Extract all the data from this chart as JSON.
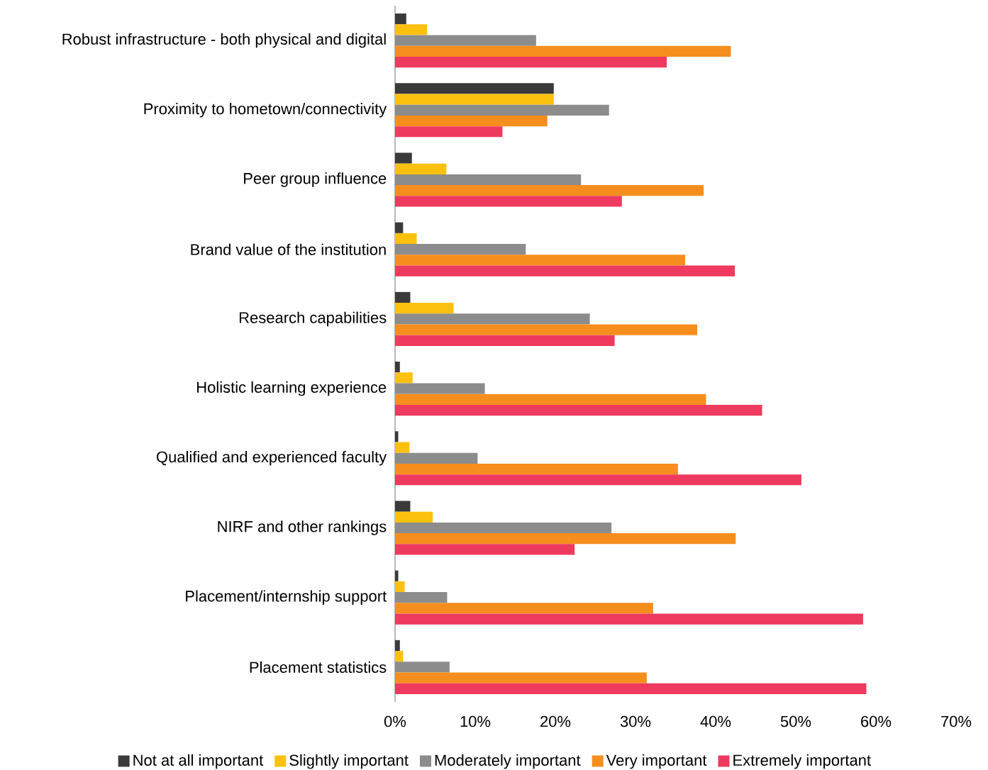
{
  "chart_data": {
    "type": "bar",
    "orientation": "horizontal",
    "categories": [
      "Robust infrastructure - both physical and digital",
      "Proximity to hometown/connectivity",
      "Peer group influence",
      "Brand value of the institution",
      "Research capabilities",
      "Holistic learning experience",
      "Qualified and experienced faculty",
      "NIRF and other rankings",
      "Placement/internship support",
      "Placement statistics"
    ],
    "series": [
      {
        "name": "Not at all important",
        "color": "#3a3a3a",
        "values": [
          1.4,
          19.8,
          2.1,
          1.0,
          1.9,
          0.6,
          0.4,
          1.9,
          0.4,
          0.6
        ]
      },
      {
        "name": "Slightly important",
        "color": "#fcc10f",
        "values": [
          4.0,
          19.8,
          6.4,
          2.7,
          7.3,
          2.2,
          1.8,
          4.7,
          1.2,
          1.0
        ]
      },
      {
        "name": "Moderately important",
        "color": "#8c8c8c",
        "values": [
          17.6,
          26.7,
          23.2,
          16.3,
          24.3,
          11.2,
          10.3,
          27.0,
          6.5,
          6.8
        ]
      },
      {
        "name": "Very important",
        "color": "#f68e1e",
        "values": [
          41.9,
          19.0,
          38.5,
          36.2,
          37.7,
          38.8,
          35.3,
          42.5,
          32.2,
          31.4
        ]
      },
      {
        "name": "Extremely important",
        "color": "#ee3a5e",
        "values": [
          33.9,
          13.4,
          28.3,
          42.4,
          27.4,
          45.8,
          50.7,
          22.4,
          58.4,
          58.8
        ]
      }
    ],
    "xlim": [
      0,
      70
    ],
    "xticks": [
      {
        "value": 0,
        "label": "0%"
      },
      {
        "value": 10,
        "label": "10%"
      },
      {
        "value": 20,
        "label": "20%"
      },
      {
        "value": 30,
        "label": "30%"
      },
      {
        "value": 40,
        "label": "40%"
      },
      {
        "value": 50,
        "label": "50%"
      },
      {
        "value": 60,
        "label": "60%"
      },
      {
        "value": 70,
        "label": "70%"
      }
    ],
    "legend": "bottom"
  }
}
